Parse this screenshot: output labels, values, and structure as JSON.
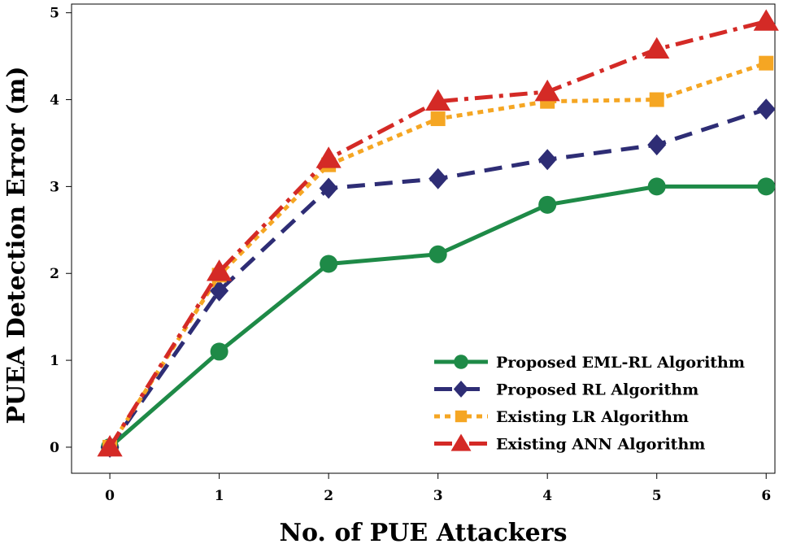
{
  "chart_data": {
    "type": "line",
    "xlabel": "No. of PUE Attackers",
    "ylabel": "PUEA Detection Error (m)",
    "x": [
      0,
      1,
      2,
      3,
      4,
      5,
      6
    ],
    "xlim": [
      -0.35,
      6.08
    ],
    "ylim": [
      -0.3,
      5.1
    ],
    "xticks": [
      "0",
      "1",
      "2",
      "3",
      "4",
      "5",
      "6"
    ],
    "yticks": [
      "0",
      "1",
      "2",
      "3",
      "4",
      "5"
    ],
    "grid": false,
    "legend_position": "bottom-right",
    "series": [
      {
        "name": "Proposed EML-RL Algorithm",
        "values": [
          0,
          1.1,
          2.11,
          2.22,
          2.79,
          3.0,
          3.0
        ],
        "color": "#1e8a47",
        "marker": "circle",
        "dash": "solid"
      },
      {
        "name": "Proposed RL Algorithm",
        "values": [
          0,
          1.8,
          2.98,
          3.09,
          3.31,
          3.48,
          3.89
        ],
        "color": "#2e2d75",
        "marker": "diamond",
        "dash": "dash"
      },
      {
        "name": "Existing LR Algorithm",
        "values": [
          0,
          1.98,
          3.25,
          3.78,
          3.98,
          4.0,
          4.42
        ],
        "color": "#f5a623",
        "marker": "square",
        "dash": "dot"
      },
      {
        "name": "Existing ANN Algorithm",
        "values": [
          0,
          2.02,
          3.32,
          3.98,
          4.09,
          4.58,
          4.9
        ],
        "color": "#d42a26",
        "marker": "triangle",
        "dash": "dashdot"
      }
    ]
  }
}
